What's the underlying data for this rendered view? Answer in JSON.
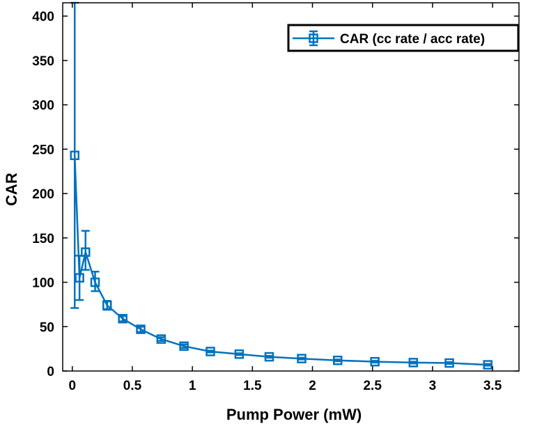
{
  "chart_data": {
    "type": "line",
    "title": "",
    "xlabel": "Pump Power (mW)",
    "ylabel": "CAR",
    "xlim": [
      -0.08,
      3.72
    ],
    "ylim": [
      0,
      415
    ],
    "xticks": [
      0,
      0.5,
      1,
      1.5,
      2,
      2.5,
      3,
      3.5
    ],
    "xtick_labels": [
      "0",
      "0.5",
      "1",
      "1.5",
      "2",
      "2.5",
      "3",
      "3.5"
    ],
    "yticks": [
      0,
      50,
      100,
      150,
      200,
      250,
      300,
      350,
      400
    ],
    "ytick_labels": [
      "0",
      "50",
      "100",
      "150",
      "200",
      "250",
      "300",
      "350",
      "400"
    ],
    "grid": false,
    "legend_position": "top-right",
    "series": [
      {
        "name": "CAR (cc rate / acc rate)",
        "color": "#0072BD",
        "marker": "square",
        "x": [
          0.02,
          0.06,
          0.11,
          0.19,
          0.29,
          0.42,
          0.57,
          0.74,
          0.93,
          1.15,
          1.39,
          1.64,
          1.91,
          2.21,
          2.52,
          2.84,
          3.14,
          3.46
        ],
        "y": [
          243,
          105,
          134,
          100,
          74,
          59,
          47,
          36,
          28,
          22,
          19,
          16,
          14,
          12,
          10.5,
          9.5,
          9,
          7
        ],
        "err_lower": [
          172,
          25,
          20,
          10,
          5,
          3,
          3,
          2,
          2,
          1,
          1,
          1,
          1,
          1,
          1,
          1,
          1,
          1
        ],
        "err_upper": [
          172,
          25,
          24,
          12,
          5,
          3,
          3,
          2,
          2,
          1,
          1,
          1,
          1,
          1,
          1,
          1,
          1,
          1
        ]
      }
    ]
  }
}
